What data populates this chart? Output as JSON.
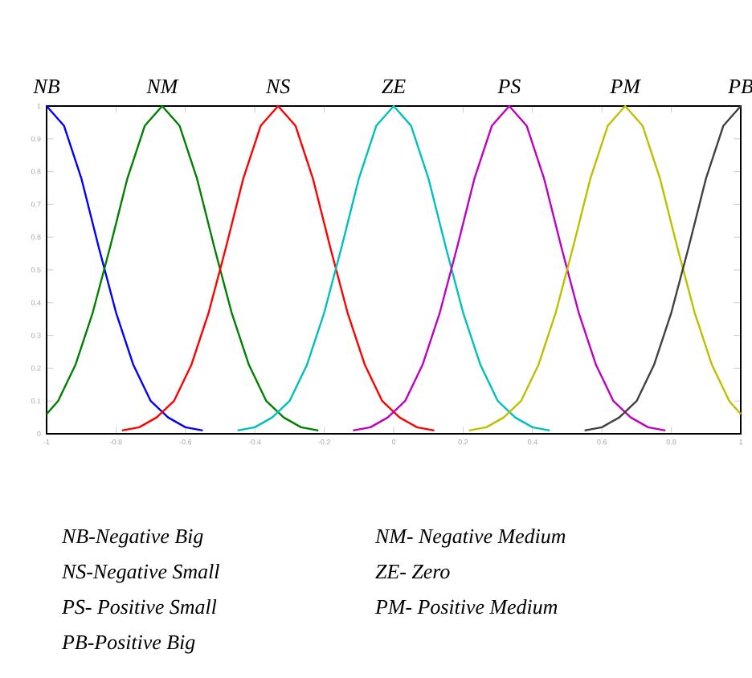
{
  "chart_data": {
    "type": "line",
    "xlim": [
      -1,
      1
    ],
    "ylim": [
      0,
      1
    ],
    "xticks": [
      -1,
      -0.8,
      -0.6,
      -0.4,
      -0.2,
      0,
      0.2,
      0.4,
      0.6,
      0.8,
      1
    ],
    "yticks": [
      0,
      0.1,
      0.2,
      0.3,
      0.4,
      0.5,
      0.6,
      0.7,
      0.8,
      0.9,
      1
    ],
    "grid": false,
    "legend": false,
    "marker": "none",
    "line_style": "solid",
    "series": [
      {
        "name": "NB",
        "color": "#0000ff",
        "x": [
          -1,
          -0.95,
          -0.9,
          -0.85,
          -0.8,
          -0.75,
          -0.7,
          -0.65,
          -0.6,
          -0.55
        ],
        "values": [
          1,
          0.94,
          0.78,
          0.57,
          0.37,
          0.21,
          0.1,
          0.05,
          0.02,
          0.01
        ]
      },
      {
        "name": "NM",
        "color": "#008000",
        "x": [
          -1,
          -0.967,
          -0.917,
          -0.867,
          -0.817,
          -0.767,
          -0.717,
          -0.667,
          -0.617,
          -0.567,
          -0.517,
          -0.467,
          -0.417,
          -0.367,
          -0.317,
          -0.267,
          -0.217
        ],
        "values": [
          0.06,
          0.1,
          0.21,
          0.37,
          0.57,
          0.78,
          0.94,
          1,
          0.94,
          0.78,
          0.57,
          0.37,
          0.21,
          0.1,
          0.05,
          0.02,
          0.01
        ]
      },
      {
        "name": "NS",
        "color": "#ff0000",
        "x": [
          -0.783,
          -0.733,
          -0.683,
          -0.633,
          -0.583,
          -0.533,
          -0.483,
          -0.433,
          -0.383,
          -0.333,
          -0.283,
          -0.233,
          -0.183,
          -0.133,
          -0.083,
          -0.033,
          0.017,
          0.067,
          0.117
        ],
        "values": [
          0.01,
          0.02,
          0.05,
          0.1,
          0.21,
          0.37,
          0.57,
          0.78,
          0.94,
          1,
          0.94,
          0.78,
          0.57,
          0.37,
          0.21,
          0.1,
          0.05,
          0.02,
          0.01
        ]
      },
      {
        "name": "ZE",
        "color": "#00bfbf",
        "x": [
          -0.45,
          -0.4,
          -0.35,
          -0.3,
          -0.25,
          -0.2,
          -0.15,
          -0.1,
          -0.05,
          0,
          0.05,
          0.1,
          0.15,
          0.2,
          0.25,
          0.3,
          0.35,
          0.4,
          0.45
        ],
        "values": [
          0.01,
          0.02,
          0.05,
          0.1,
          0.21,
          0.37,
          0.57,
          0.78,
          0.94,
          1,
          0.94,
          0.78,
          0.57,
          0.37,
          0.21,
          0.1,
          0.05,
          0.02,
          0.01
        ]
      },
      {
        "name": "PS",
        "color": "#bf00bf",
        "x": [
          -0.117,
          -0.067,
          -0.017,
          0.033,
          0.083,
          0.133,
          0.183,
          0.233,
          0.283,
          0.333,
          0.383,
          0.433,
          0.483,
          0.533,
          0.583,
          0.633,
          0.683,
          0.733,
          0.783
        ],
        "values": [
          0.01,
          0.02,
          0.05,
          0.1,
          0.21,
          0.37,
          0.57,
          0.78,
          0.94,
          1,
          0.94,
          0.78,
          0.57,
          0.37,
          0.21,
          0.1,
          0.05,
          0.02,
          0.01
        ]
      },
      {
        "name": "PM",
        "color": "#bfbf00",
        "x": [
          0.217,
          0.267,
          0.317,
          0.367,
          0.417,
          0.467,
          0.517,
          0.567,
          0.617,
          0.667,
          0.717,
          0.767,
          0.817,
          0.867,
          0.917,
          0.967,
          1
        ],
        "values": [
          0.01,
          0.02,
          0.05,
          0.1,
          0.21,
          0.37,
          0.57,
          0.78,
          0.94,
          1,
          0.94,
          0.78,
          0.57,
          0.37,
          0.21,
          0.1,
          0.06
        ]
      },
      {
        "name": "PB",
        "color": "#404040",
        "x": [
          0.55,
          0.6,
          0.65,
          0.7,
          0.75,
          0.8,
          0.85,
          0.9,
          0.95,
          1
        ],
        "values": [
          0.01,
          0.02,
          0.05,
          0.1,
          0.21,
          0.37,
          0.57,
          0.78,
          0.94,
          1
        ]
      }
    ],
    "annotations": [
      "NB-Negative Big",
      "NM- Negative Medium",
      "NS-Negative Small",
      "ZE- Zero",
      "PS- Positive Small",
      "PM- Positive Medium",
      "PB-Positive Big"
    ]
  }
}
